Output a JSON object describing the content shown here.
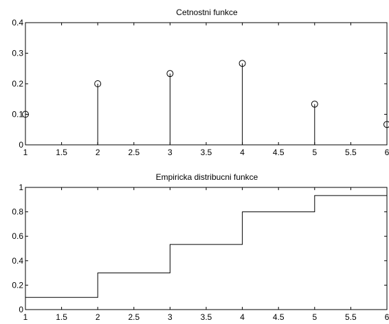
{
  "chart_data": [
    {
      "type": "stem",
      "title": "Cetnostni funkce",
      "xlabel": "",
      "ylabel": "",
      "xlim": [
        1,
        6
      ],
      "ylim": [
        0,
        0.4
      ],
      "xticks": [
        "1",
        "1.5",
        "2",
        "2.5",
        "3",
        "3.5",
        "4",
        "4.5",
        "5",
        "5.5",
        "6"
      ],
      "yticks": [
        "0",
        "0.1",
        "0.2",
        "0.3",
        "0.4"
      ],
      "x": [
        1,
        2,
        3,
        4,
        5,
        6
      ],
      "values": [
        0.1,
        0.2,
        0.2333,
        0.2667,
        0.1333,
        0.0667
      ],
      "marker": "circle",
      "grid": false,
      "color": "#000000"
    },
    {
      "type": "stairs",
      "title": "Empiricka distribucni funkce",
      "xlabel": "",
      "ylabel": "",
      "xlim": [
        1,
        6
      ],
      "ylim": [
        0,
        1
      ],
      "xticks": [
        "1",
        "1.5",
        "2",
        "2.5",
        "3",
        "3.5",
        "4",
        "4.5",
        "5",
        "5.5",
        "6"
      ],
      "yticks": [
        "0",
        "0.2",
        "0.4",
        "0.6",
        "0.8",
        "1"
      ],
      "x": [
        1,
        2,
        3,
        4,
        5,
        6
      ],
      "values": [
        0.1,
        0.3,
        0.5333,
        0.8,
        0.9333,
        1.0
      ],
      "grid": false,
      "color": "#000000"
    }
  ]
}
